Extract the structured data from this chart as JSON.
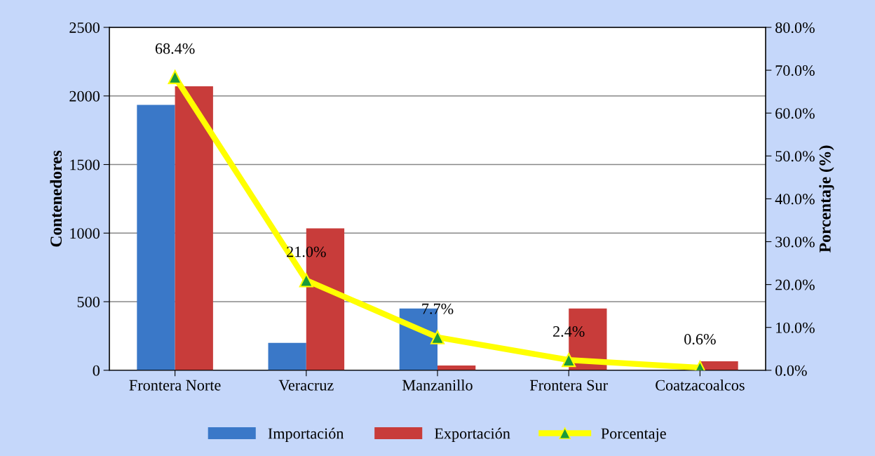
{
  "chart_data": {
    "type": "bar",
    "ylabel": "Contenedores",
    "y2label": "Porcentaje (%)",
    "categories": [
      "Frontera Norte",
      "Veracruz",
      "Manzanillo",
      "Frontera Sur",
      "Coatzacoalcos"
    ],
    "series": [
      {
        "name": "Importación",
        "color": "#3a78c8",
        "values": [
          1935,
          200,
          450,
          0,
          0
        ]
      },
      {
        "name": "Exportación",
        "color": "#c83c3a",
        "values": [
          2070,
          1035,
          35,
          450,
          65
        ]
      },
      {
        "name": "Porcentaje",
        "type": "line",
        "axis": "y2",
        "color": "#ffff00",
        "marker": "triangle",
        "values": [
          68.4,
          21.0,
          7.7,
          2.4,
          0.6
        ],
        "value_labels": [
          "68.4%",
          "21.0%",
          "7.7%",
          "2.4%",
          "0.6%"
        ]
      }
    ],
    "ylim": [
      0,
      2500
    ],
    "yticks": [
      0,
      500,
      1000,
      1500,
      2000,
      2500
    ],
    "y2lim": [
      0,
      80
    ],
    "y2ticks": [
      {
        "value": 0,
        "label": "0.0%"
      },
      {
        "value": 10,
        "label": "10.0%"
      },
      {
        "value": 20,
        "label": "20.0%"
      },
      {
        "value": 30,
        "label": "30.0%"
      },
      {
        "value": 40,
        "label": "40.0%"
      },
      {
        "value": 50,
        "label": "50.0%"
      },
      {
        "value": 60,
        "label": "60.0%"
      },
      {
        "value": 70,
        "label": "70.0%"
      },
      {
        "value": 80,
        "label": "80.0%"
      }
    ],
    "grid": "y",
    "legend": "bottom"
  }
}
